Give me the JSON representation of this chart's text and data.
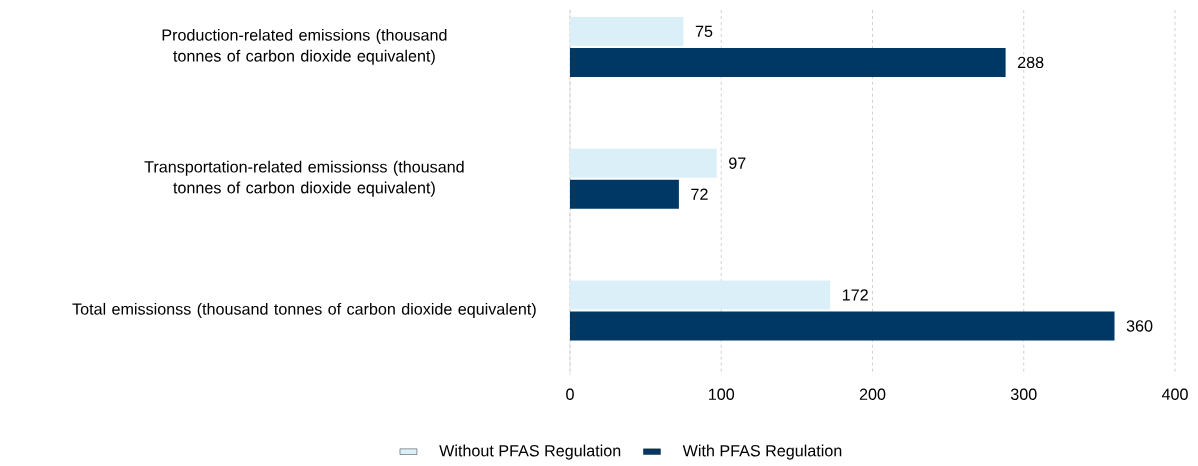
{
  "chart_data": {
    "type": "bar",
    "orientation": "horizontal",
    "categories": [
      "Production-related emissions (thousand tonnes of carbon dioxide equivalent)",
      "Transportation-related emissionss (thousand tonnes of carbon dioxide equivalent)",
      "Total emissionss (thousand tonnes of carbon dioxide equivalent)"
    ],
    "series": [
      {
        "name": "Without PFAS Regulation",
        "color": "#dbeff9",
        "values": [
          75,
          97,
          172
        ]
      },
      {
        "name": "With PFAS Regulation",
        "color": "#003865",
        "values": [
          288,
          72,
          360
        ]
      }
    ],
    "xlim": [
      0,
      400
    ],
    "xticks": [
      0,
      100,
      200,
      300,
      400
    ],
    "grid": "x",
    "legend": "bottom",
    "data_labels": true
  }
}
